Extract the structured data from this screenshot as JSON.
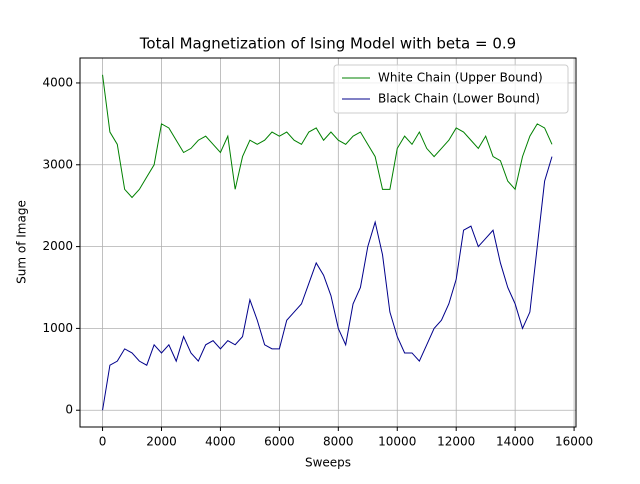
{
  "chart_data": {
    "type": "line",
    "title": "Total Magnetization of Ising Model with beta = 0.9",
    "x_label": "Sweeps",
    "y_label": "Sum of Image",
    "x": [
      0,
      250,
      500,
      750,
      1000,
      1250,
      1500,
      1750,
      2000,
      2250,
      2500,
      2750,
      3000,
      3250,
      3500,
      3750,
      4000,
      4250,
      4500,
      4750,
      5000,
      5250,
      5500,
      5750,
      6000,
      6250,
      6500,
      6750,
      7000,
      7250,
      7500,
      7750,
      8000,
      8250,
      8500,
      8750,
      9000,
      9250,
      9500,
      9750,
      10000,
      10250,
      10500,
      10750,
      11000,
      11250,
      11500,
      11750,
      12000,
      12250,
      12500,
      12750,
      13000,
      13250,
      13500,
      13750,
      14000,
      14250,
      14500,
      14750,
      15000,
      15250
    ],
    "series": [
      {
        "name": "White Chain (Upper Bound)",
        "color": "#008000",
        "values": [
          4100,
          3400,
          3250,
          2700,
          2600,
          2700,
          2850,
          3000,
          3500,
          3450,
          3300,
          3150,
          3200,
          3300,
          3350,
          3250,
          3150,
          3350,
          2700,
          3100,
          3300,
          3250,
          3300,
          3400,
          3350,
          3400,
          3300,
          3250,
          3400,
          3450,
          3300,
          3400,
          3300,
          3250,
          3350,
          3400,
          3250,
          3100,
          2700,
          2700,
          3200,
          3350,
          3250,
          3400,
          3200,
          3100,
          3200,
          3300,
          3450,
          3400,
          3300,
          3200,
          3350,
          3100,
          3050,
          2800,
          2700,
          3100,
          3350,
          3500,
          3450,
          3250
        ]
      },
      {
        "name": "Black Chain (Lower Bound)",
        "color": "#00008b",
        "values": [
          0,
          550,
          600,
          750,
          700,
          600,
          550,
          800,
          700,
          800,
          600,
          900,
          700,
          600,
          800,
          850,
          750,
          850,
          800,
          900,
          1350,
          1100,
          800,
          750,
          750,
          1100,
          1200,
          1300,
          1550,
          1800,
          1650,
          1400,
          1000,
          800,
          1300,
          1500,
          2000,
          2300,
          1900,
          1200,
          900,
          700,
          700,
          600,
          800,
          1000,
          1100,
          1300,
          1600,
          2200,
          2250,
          2000,
          2100,
          2200,
          1800,
          1500,
          1300,
          1000,
          1200,
          2000,
          2800,
          3100
        ]
      }
    ],
    "xlim": [
      -765,
      16065
    ],
    "ylim": [
      -205,
      4305
    ],
    "xticks": [
      0,
      2000,
      4000,
      6000,
      8000,
      10000,
      12000,
      14000,
      16000
    ],
    "yticks": [
      0,
      1000,
      2000,
      3000,
      4000
    ],
    "grid": true,
    "legend": "upper right"
  }
}
